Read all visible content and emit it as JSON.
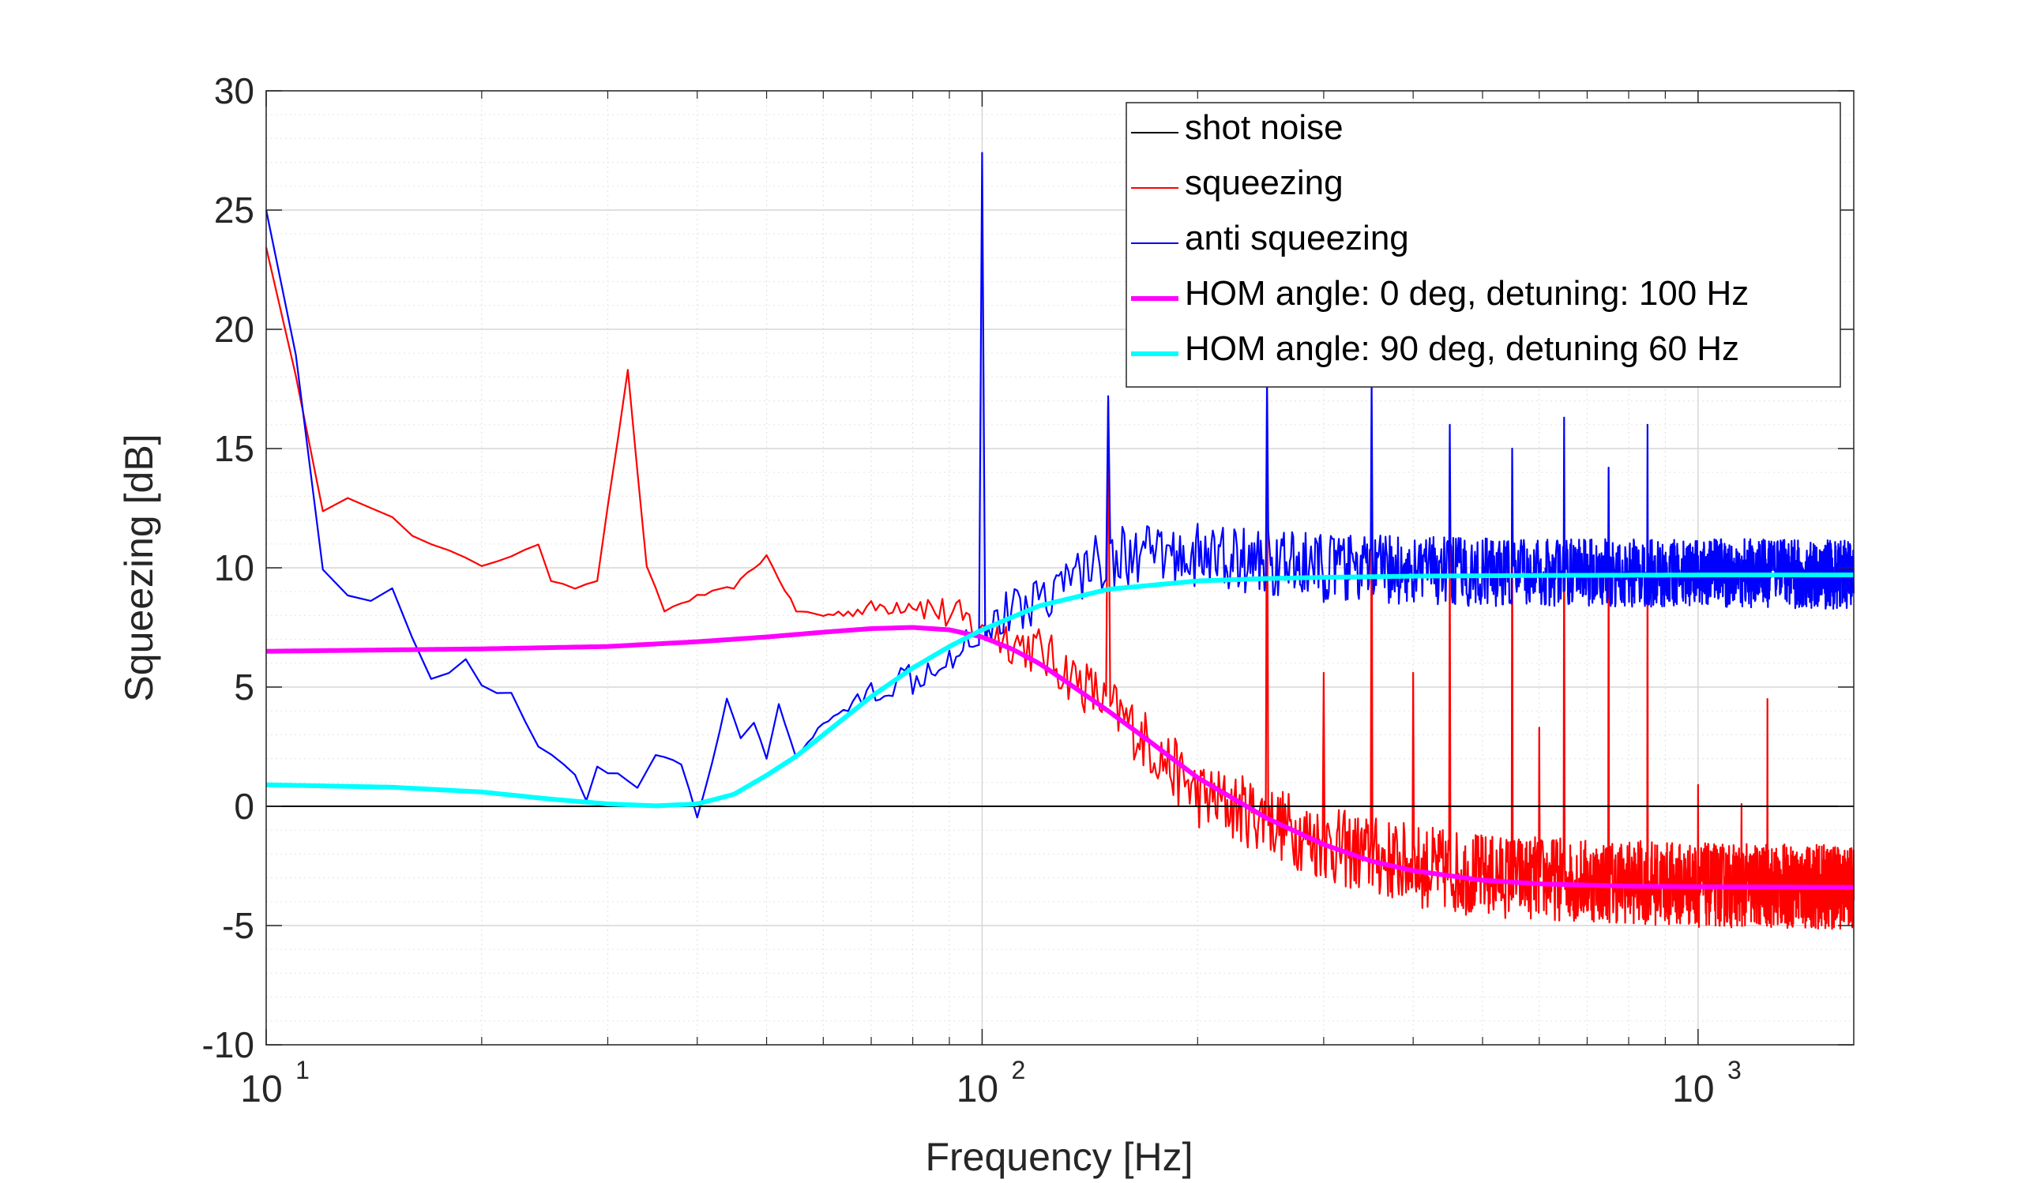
{
  "chart_data": {
    "type": "line",
    "title": "",
    "xlabel": "Frequency [Hz]",
    "ylabel": "Squeezing [dB]",
    "xscale": "log",
    "xlim": [
      10,
      1650
    ],
    "ylim": [
      -10,
      30
    ],
    "yticks": [
      -10,
      -5,
      0,
      5,
      10,
      15,
      20,
      25,
      30
    ],
    "ytick_labels": [
      "-10",
      "-5",
      "0",
      "5",
      "10",
      "15",
      "20",
      "25",
      "30"
    ],
    "xticks": [
      {
        "base": "10",
        "exp": "1"
      },
      {
        "base": "10",
        "exp": "2"
      },
      {
        "base": "10",
        "exp": "3"
      }
    ],
    "grid": true,
    "minor_grid": true,
    "legend_position": "top-right",
    "series": [
      {
        "name": "shot noise",
        "color": "#000000",
        "x": [
          10,
          1650
        ],
        "y": [
          0,
          0
        ]
      },
      {
        "name": "squeezing",
        "color": "#ff0000",
        "kind": "noisy",
        "base": [
          [
            10,
            23.5
          ],
          [
            11,
            18
          ],
          [
            12,
            12.3
          ],
          [
            13,
            13
          ],
          [
            15,
            12.2
          ],
          [
            16,
            11.3
          ],
          [
            20,
            10.1
          ],
          [
            24,
            10.9
          ],
          [
            25,
            9.5
          ],
          [
            27,
            9.2
          ],
          [
            29,
            9.5
          ],
          [
            32,
            18.3
          ],
          [
            34,
            10
          ],
          [
            36,
            8.2
          ],
          [
            40,
            8.8
          ],
          [
            45,
            9.2
          ],
          [
            50,
            10.5
          ],
          [
            55,
            8.2
          ],
          [
            60,
            8
          ],
          [
            70,
            8.3
          ],
          [
            80,
            8.6
          ],
          [
            90,
            8
          ],
          [
            100,
            7.5
          ],
          [
            120,
            6.5
          ],
          [
            140,
            5
          ],
          [
            160,
            3.5
          ],
          [
            200,
            0.5
          ],
          [
            250,
            -0.5
          ],
          [
            300,
            -1.6
          ],
          [
            400,
            -2.5
          ],
          [
            500,
            -2.9
          ],
          [
            700,
            -3.1
          ],
          [
            1000,
            -3.3
          ],
          [
            1650,
            -3.4
          ]
        ],
        "noise": [
          [
            10,
            0.05
          ],
          [
            60,
            0.05
          ],
          [
            100,
            0.6
          ],
          [
            200,
            0.9
          ],
          [
            400,
            1.1
          ],
          [
            1650,
            1.1
          ]
        ],
        "spikes": [
          [
            32,
            18.3
          ],
          [
            100,
            7.6
          ],
          [
            150,
            17
          ],
          [
            250,
            17.2
          ],
          [
            300,
            5.6
          ],
          [
            350,
            15.7
          ],
          [
            400,
            5.6
          ],
          [
            450,
            11
          ],
          [
            550,
            12.6
          ],
          [
            600,
            3.3
          ],
          [
            650,
            12.7
          ],
          [
            750,
            11.6
          ],
          [
            850,
            12.6
          ],
          [
            1000,
            0.9
          ],
          [
            1150,
            0.1
          ],
          [
            1250,
            4.5
          ]
        ]
      },
      {
        "name": "anti squeezing",
        "color": "#0000ff",
        "kind": "noisy",
        "base": [
          [
            10,
            25
          ],
          [
            11,
            19
          ],
          [
            12,
            10
          ],
          [
            13,
            8.8
          ],
          [
            14,
            8.6
          ],
          [
            15,
            9.2
          ],
          [
            16,
            7
          ],
          [
            17,
            5.4
          ],
          [
            18,
            5.6
          ],
          [
            19,
            6.2
          ],
          [
            20,
            5
          ],
          [
            21,
            4.8
          ],
          [
            22,
            4.8
          ],
          [
            24,
            2.5
          ],
          [
            25,
            2.2
          ],
          [
            26,
            1.8
          ],
          [
            27,
            1.3
          ],
          [
            28,
            0.3
          ],
          [
            29,
            1.6
          ],
          [
            31,
            1.3
          ],
          [
            33,
            0.8
          ],
          [
            35,
            2.2
          ],
          [
            38,
            1.8
          ],
          [
            40,
            -0.5
          ],
          [
            42,
            1.8
          ],
          [
            44,
            4.5
          ],
          [
            46,
            2.8
          ],
          [
            48,
            3.5
          ],
          [
            50,
            2
          ],
          [
            52,
            4.3
          ],
          [
            55,
            2
          ],
          [
            60,
            3.5
          ],
          [
            70,
            4.8
          ],
          [
            80,
            5.5
          ],
          [
            90,
            6.5
          ],
          [
            100,
            7.5
          ],
          [
            120,
            8.8
          ],
          [
            150,
            10.5
          ],
          [
            200,
            10.5
          ],
          [
            300,
            10
          ],
          [
            500,
            9.8
          ],
          [
            1000,
            9.8
          ],
          [
            1650,
            9.7
          ]
        ],
        "noise": [
          [
            10,
            0.05
          ],
          [
            60,
            0.05
          ],
          [
            80,
            0.5
          ],
          [
            150,
            0.8
          ],
          [
            300,
            0.9
          ],
          [
            1650,
            0.9
          ]
        ],
        "spikes": [
          [
            100,
            27.4
          ],
          [
            150,
            17.2
          ],
          [
            250,
            18
          ],
          [
            350,
            17.8
          ],
          [
            450,
            16
          ],
          [
            550,
            15
          ],
          [
            650,
            16.3
          ],
          [
            750,
            14.2
          ],
          [
            850,
            16
          ]
        ]
      },
      {
        "name": "HOM angle: 0 deg, detuning: 100 Hz",
        "color": "#ff00ff",
        "kind": "model",
        "x": [
          10,
          20,
          30,
          40,
          50,
          60,
          70,
          80,
          90,
          100,
          110,
          120,
          130,
          150,
          170,
          200,
          250,
          300,
          350,
          400,
          500,
          600,
          800,
          1000,
          1650
        ],
        "y": [
          6.5,
          6.6,
          6.7,
          6.9,
          7.1,
          7.3,
          7.45,
          7.5,
          7.4,
          7.1,
          6.6,
          6,
          5.3,
          4,
          2.8,
          1.2,
          -0.5,
          -1.6,
          -2.3,
          -2.7,
          -3.1,
          -3.25,
          -3.35,
          -3.37,
          -3.4
        ]
      },
      {
        "name": "HOM angle: 90 deg, detuning 60 Hz",
        "color": "#00ffff",
        "kind": "model",
        "x": [
          10,
          15,
          20,
          25,
          30,
          35,
          40,
          45,
          50,
          55,
          60,
          70,
          80,
          90,
          100,
          120,
          150,
          200,
          250,
          300,
          400,
          600,
          1000,
          1650
        ],
        "y": [
          0.9,
          0.8,
          0.6,
          0.3,
          0.1,
          0.02,
          0.1,
          0.5,
          1.3,
          2.1,
          3,
          4.6,
          5.8,
          6.7,
          7.4,
          8.4,
          9.1,
          9.45,
          9.55,
          9.6,
          9.65,
          9.68,
          9.7,
          9.7
        ]
      }
    ]
  }
}
